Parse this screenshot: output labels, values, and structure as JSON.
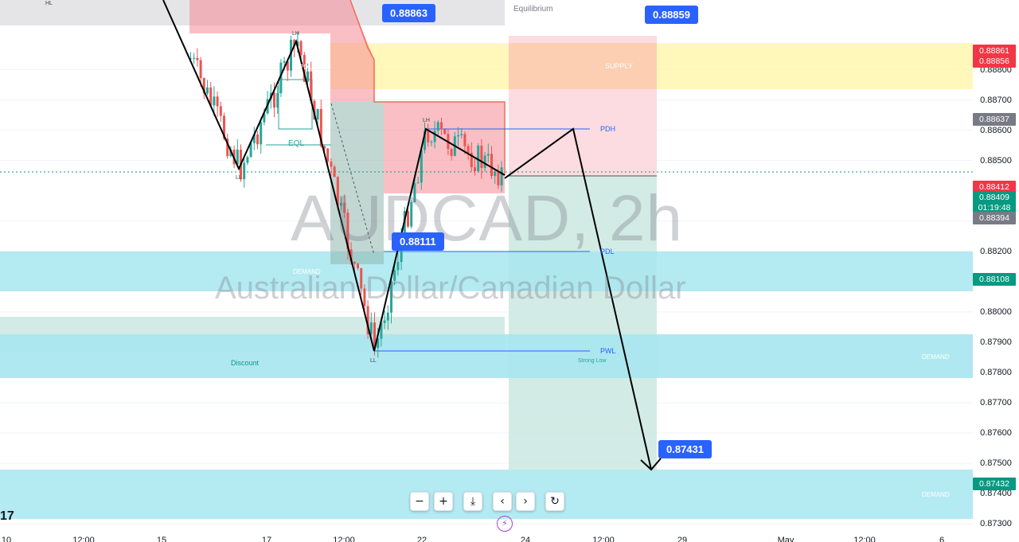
{
  "chart_data": {
    "type": "candlestick",
    "symbol": "AUDCAD, 2h",
    "symbol_full": "Australian Dollar/Canadian Dollar",
    "ylim": [
      0.8724,
      0.8903
    ],
    "y_ticks": [
      "0.88800",
      "0.88700",
      "0.88600",
      "0.88500",
      "0.88300",
      "0.88200",
      "0.88000",
      "0.87900",
      "0.87800",
      "0.87700",
      "0.87600",
      "0.87500",
      "0.87400",
      "0.87300"
    ],
    "x_ticks": [
      "10",
      "12:00",
      "15",
      "17",
      "12:00",
      "22",
      "24",
      "12:00",
      "29",
      "May",
      "12:00",
      "6"
    ],
    "price_badges": [
      {
        "text": "0.88861",
        "color": "#f23645"
      },
      {
        "text": "0.88856",
        "color": "#f23645"
      },
      {
        "text": "0.88637",
        "color": "#787b86"
      },
      {
        "text": "0.88412",
        "color": "#f23645"
      },
      {
        "text": "0.88409",
        "color": "#089981"
      },
      {
        "text": "01:19:48",
        "color": "#089981"
      },
      {
        "text": "0.88394",
        "color": "#787b86"
      },
      {
        "text": "0.88108",
        "color": "#089981"
      },
      {
        "text": "0.87432",
        "color": "#089981"
      }
    ],
    "callouts": [
      "0.88863",
      "0.88859",
      "0.88111",
      "0.87431"
    ],
    "zone_labels": {
      "equilibrium": "Equilibrium",
      "supply": "SUPPLY",
      "demand_left": "DEMAND",
      "demand_right": "DEMAND",
      "demand_bottom": "DEMAND",
      "discount": "Discount",
      "strong_low": "Strong Low",
      "pdh": "PDH",
      "pdl": "PDL",
      "pwl": "PWL",
      "eql": "EQL",
      "pdl_alt": "PDL"
    },
    "swing_labels": [
      "HL",
      "LH",
      "LL",
      "LH",
      "LL"
    ],
    "projected_path": [
      0.88411,
      0.88548,
      0.87432
    ],
    "colors": {
      "up": "#26a69a",
      "down": "#ef5350",
      "demand_zone": "#b2ebf2",
      "supply_zone": "#fff59d",
      "premium_zone": "#f7a8ad",
      "target_zone": "#d1ebe4",
      "stop_zone": "#fbd6db"
    }
  },
  "controls": {
    "zoom_out": "−",
    "zoom_in": "+",
    "reset_scale": "⤓",
    "scroll_left": "‹",
    "scroll_right": "›",
    "reset": "↻"
  },
  "logo": "17"
}
